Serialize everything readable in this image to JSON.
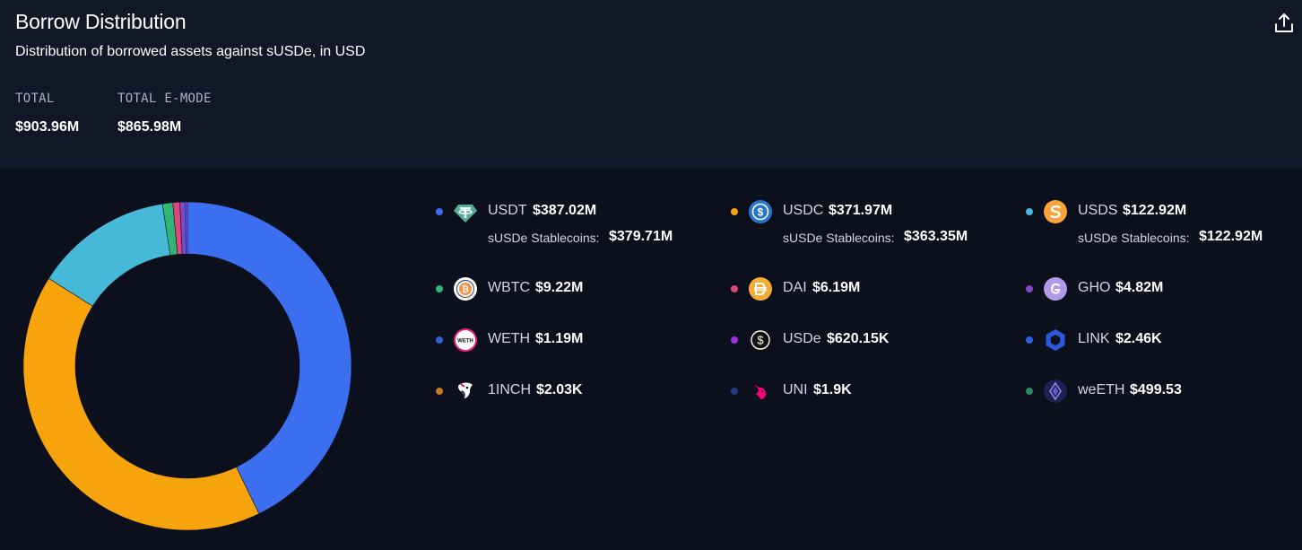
{
  "header": {
    "title": "Borrow Distribution",
    "subtitle": "Distribution of borrowed assets against sUSDe, in USD",
    "share_icon": "share-upload-icon"
  },
  "stats": [
    {
      "label": "TOTAL",
      "value": "$903.96M"
    },
    {
      "label": "TOTAL E-MODE",
      "value": "$865.98M"
    }
  ],
  "chart_data": {
    "type": "pie",
    "categories": [
      "USDT",
      "USDC",
      "USDS",
      "WBTC",
      "DAI",
      "GHO",
      "WETH",
      "USDe",
      "LINK",
      "1INCH",
      "UNI",
      "weETH"
    ],
    "values": [
      387.02,
      371.97,
      122.92,
      9.22,
      6.19,
      4.82,
      1.19,
      0.62015,
      0.00246,
      0.00203,
      0.0019,
      0.00049953
    ],
    "units": "USD millions",
    "colors": [
      "#3b6ff0",
      "#f7a40c",
      "#46b8d8",
      "#31b574",
      "#e0457b",
      "#7e48c8",
      "#2c5fd6",
      "#a12ce6",
      "#3060e0",
      "#c7772a",
      "#1f3c86",
      "#2e8a66"
    ],
    "donut": true
  },
  "legend": [
    {
      "symbol": "USDT",
      "value": "$387.02M",
      "sub_label": "sUSDe Stablecoins:",
      "sub_value": "$379.71M",
      "color": "#3b6ff0",
      "icon": "usdt-icon"
    },
    {
      "symbol": "USDC",
      "value": "$371.97M",
      "sub_label": "sUSDe Stablecoins:",
      "sub_value": "$363.35M",
      "color": "#f7a40c",
      "icon": "usdc-icon"
    },
    {
      "symbol": "USDS",
      "value": "$122.92M",
      "sub_label": "sUSDe Stablecoins:",
      "sub_value": "$122.92M",
      "color": "#46b8d8",
      "icon": "usds-icon"
    },
    {
      "symbol": "WBTC",
      "value": "$9.22M",
      "color": "#31b574",
      "icon": "wbtc-icon"
    },
    {
      "symbol": "DAI",
      "value": "$6.19M",
      "color": "#e0457b",
      "icon": "dai-icon"
    },
    {
      "symbol": "GHO",
      "value": "$4.82M",
      "color": "#7e48c8",
      "icon": "gho-icon"
    },
    {
      "symbol": "WETH",
      "value": "$1.19M",
      "color": "#2c5fd6",
      "icon": "weth-icon"
    },
    {
      "symbol": "USDe",
      "value": "$620.15K",
      "color": "#a12ce6",
      "icon": "usde-icon"
    },
    {
      "symbol": "LINK",
      "value": "$2.46K",
      "color": "#3060e0",
      "icon": "link-icon"
    },
    {
      "symbol": "1INCH",
      "value": "$2.03K",
      "color": "#c7772a",
      "icon": "1inch-icon"
    },
    {
      "symbol": "UNI",
      "value": "$1.9K",
      "color": "#1f3c86",
      "icon": "uni-icon"
    },
    {
      "symbol": "weETH",
      "value": "$499.53",
      "color": "#2e8a66",
      "icon": "weeth-icon"
    }
  ]
}
